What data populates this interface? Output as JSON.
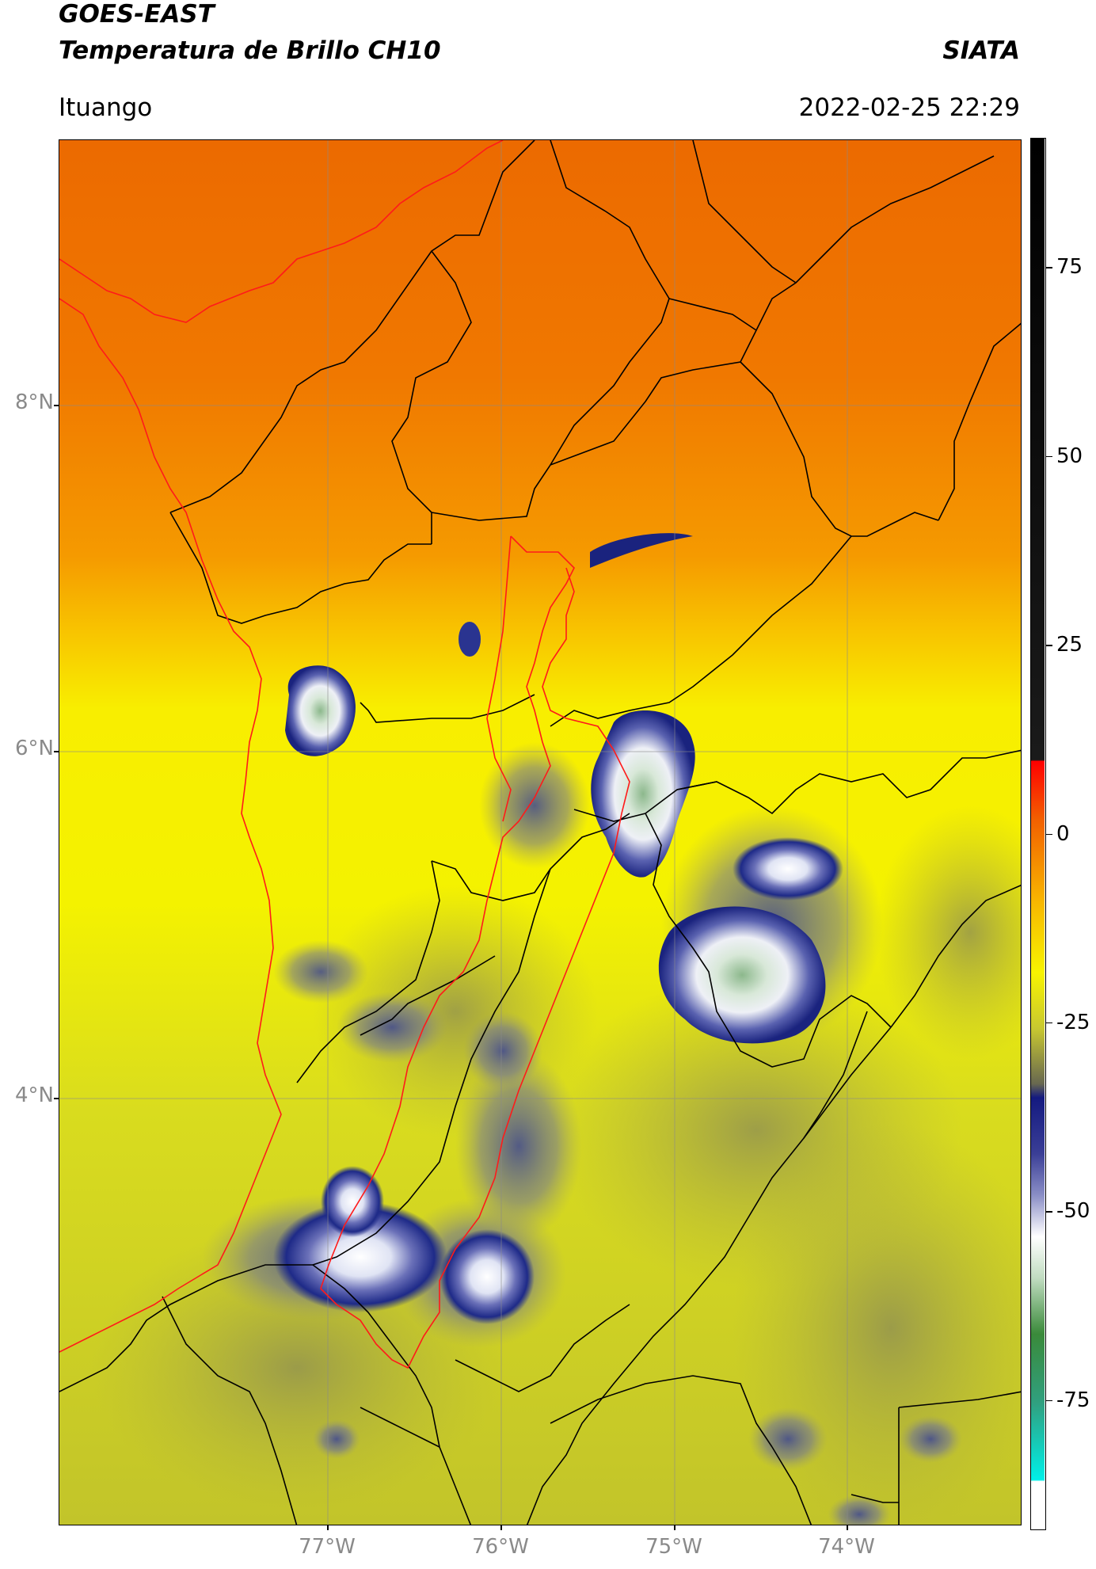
{
  "header": {
    "title_line1": "GOES-EAST",
    "title_line2": "Temperatura de Brillo CH10",
    "org": "SIATA",
    "location": "Ituango",
    "datetime": "2022-02-25 22:29"
  },
  "map": {
    "lat_labels": [
      "8°N",
      "6°N",
      "4°N"
    ],
    "lon_labels": [
      "77°W",
      "76°W",
      "75°W",
      "74°W"
    ]
  },
  "colorbar": {
    "ticks": [
      "75",
      "50",
      "25",
      "0",
      "-25",
      "-50",
      "-75"
    ],
    "tick_values": [
      75,
      50,
      25,
      0,
      -25,
      -50,
      -75
    ],
    "range": [
      -92,
      92
    ],
    "colors": {
      "warm": "#e87000",
      "neutral": "#f7f400",
      "cold": "#1a237e",
      "coldest": "#e8f0e8",
      "overshoot": "#000000"
    }
  }
}
